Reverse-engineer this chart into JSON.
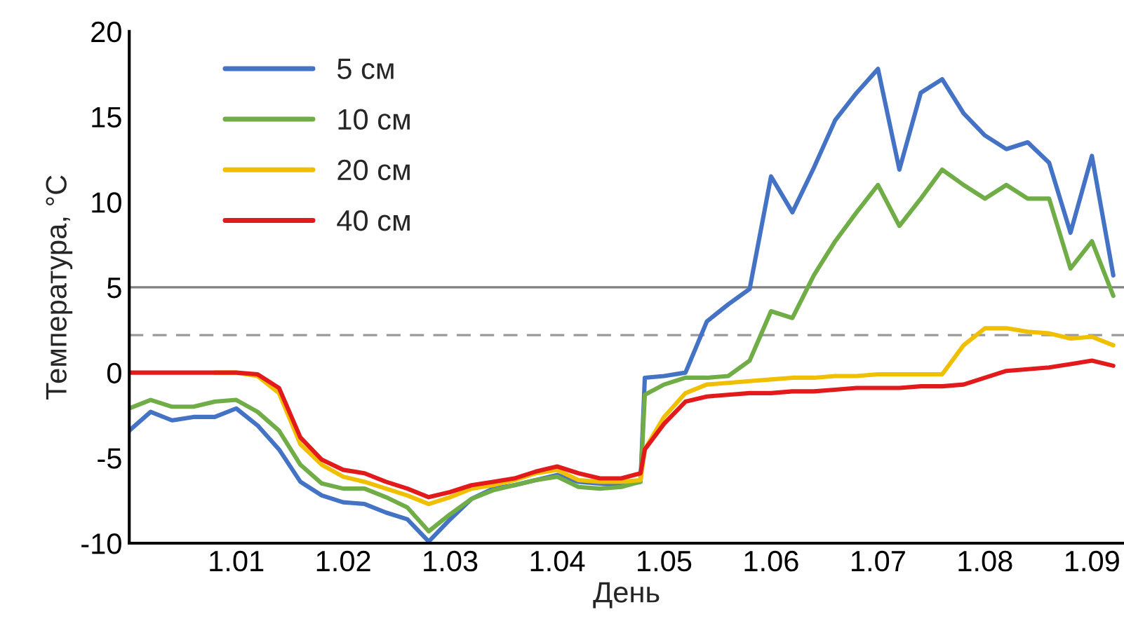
{
  "chart_data": {
    "type": "line",
    "xlabel": "День",
    "ylabel": "Температура, °C",
    "x": [
      1.0,
      1.002,
      1.004,
      1.006,
      1.008,
      1.01,
      1.012,
      1.014,
      1.016,
      1.018,
      1.02,
      1.022,
      1.024,
      1.026,
      1.028,
      1.03,
      1.032,
      1.034,
      1.036,
      1.038,
      1.04,
      1.042,
      1.044,
      1.046,
      1.0478,
      1.0482,
      1.05,
      1.052,
      1.054,
      1.056,
      1.058,
      1.06,
      1.062,
      1.064,
      1.066,
      1.068,
      1.07,
      1.072,
      1.074,
      1.076,
      1.078,
      1.08,
      1.082,
      1.084,
      1.086,
      1.088,
      1.09,
      1.092
    ],
    "series": [
      {
        "name": "5 см",
        "color": "#4472c4",
        "values": [
          -3.4,
          -2.3,
          -2.8,
          -2.6,
          -2.6,
          -2.1,
          -3.1,
          -4.5,
          -6.4,
          -7.2,
          -7.6,
          -7.7,
          -8.2,
          -8.6,
          -9.9,
          -8.6,
          -7.4,
          -6.8,
          -6.6,
          -6.3,
          -6.0,
          -6.4,
          -6.5,
          -6.6,
          -6.4,
          -0.3,
          -0.2,
          0.0,
          3.0,
          4.0,
          4.9,
          11.5,
          9.4,
          12.0,
          14.8,
          16.4,
          17.8,
          11.9,
          16.4,
          17.2,
          15.2,
          13.9,
          13.1,
          13.5,
          12.3,
          8.2,
          12.7,
          5.7
        ]
      },
      {
        "name": "10 см",
        "color": "#70ad47",
        "values": [
          -2.1,
          -1.6,
          -2.0,
          -2.0,
          -1.7,
          -1.6,
          -2.3,
          -3.4,
          -5.4,
          -6.5,
          -6.8,
          -6.8,
          -7.3,
          -7.9,
          -9.3,
          -8.3,
          -7.4,
          -6.9,
          -6.6,
          -6.3,
          -6.1,
          -6.7,
          -6.8,
          -6.7,
          -6.4,
          -1.3,
          -0.7,
          -0.3,
          -0.3,
          -0.2,
          0.7,
          3.6,
          3.2,
          5.7,
          7.7,
          9.4,
          11.0,
          8.6,
          10.2,
          11.9,
          11.0,
          10.2,
          11.0,
          10.2,
          10.2,
          6.1,
          7.7,
          4.5
        ]
      },
      {
        "name": "20 см",
        "color": "#f0c000",
        "values": [
          null,
          null,
          null,
          null,
          0,
          0,
          -0.2,
          -1.2,
          -4.2,
          -5.4,
          -6.1,
          -6.4,
          -6.8,
          -7.2,
          -7.7,
          -7.3,
          -6.8,
          -6.6,
          -6.3,
          -5.9,
          -5.7,
          -6.3,
          -6.4,
          -6.4,
          -6.3,
          -4.5,
          -2.6,
          -1.2,
          -0.7,
          -0.6,
          -0.5,
          -0.4,
          -0.3,
          -0.3,
          -0.2,
          -0.2,
          -0.1,
          -0.1,
          -0.1,
          -0.1,
          1.6,
          2.6,
          2.6,
          2.4,
          2.3,
          2.0,
          2.1,
          1.6
        ]
      },
      {
        "name": "40 см",
        "color": "#e31a1c",
        "values": [
          0,
          0,
          0,
          0,
          0,
          0,
          -0.1,
          -0.9,
          -3.8,
          -5.1,
          -5.7,
          -5.9,
          -6.4,
          -6.8,
          -7.3,
          -7.0,
          -6.6,
          -6.4,
          -6.2,
          -5.8,
          -5.5,
          -5.9,
          -6.2,
          -6.2,
          -5.9,
          -4.5,
          -3.0,
          -1.7,
          -1.4,
          -1.3,
          -1.2,
          -1.2,
          -1.1,
          -1.1,
          -1.0,
          -0.9,
          -0.9,
          -0.9,
          -0.8,
          -0.8,
          -0.7,
          -0.3,
          0.1,
          0.2,
          0.3,
          0.5,
          0.7,
          0.4
        ]
      }
    ],
    "xlim": [
      1.0,
      1.093
    ],
    "xticks": [
      1.01,
      1.02,
      1.03,
      1.04,
      1.05,
      1.06,
      1.07,
      1.08,
      1.09
    ],
    "ylim": [
      -10,
      20
    ],
    "yticks": [
      -10,
      -5,
      0,
      5,
      10,
      15,
      20
    ],
    "ref_lines": [
      {
        "axis": "y",
        "value": 5,
        "color": "#808080",
        "line_style": "solid"
      },
      {
        "axis": "y",
        "value": 2.2,
        "color": "#999999",
        "line_style": "dashed"
      }
    ],
    "legend": "top left",
    "grid": false,
    "marker": "none",
    "line_style": "solid"
  }
}
